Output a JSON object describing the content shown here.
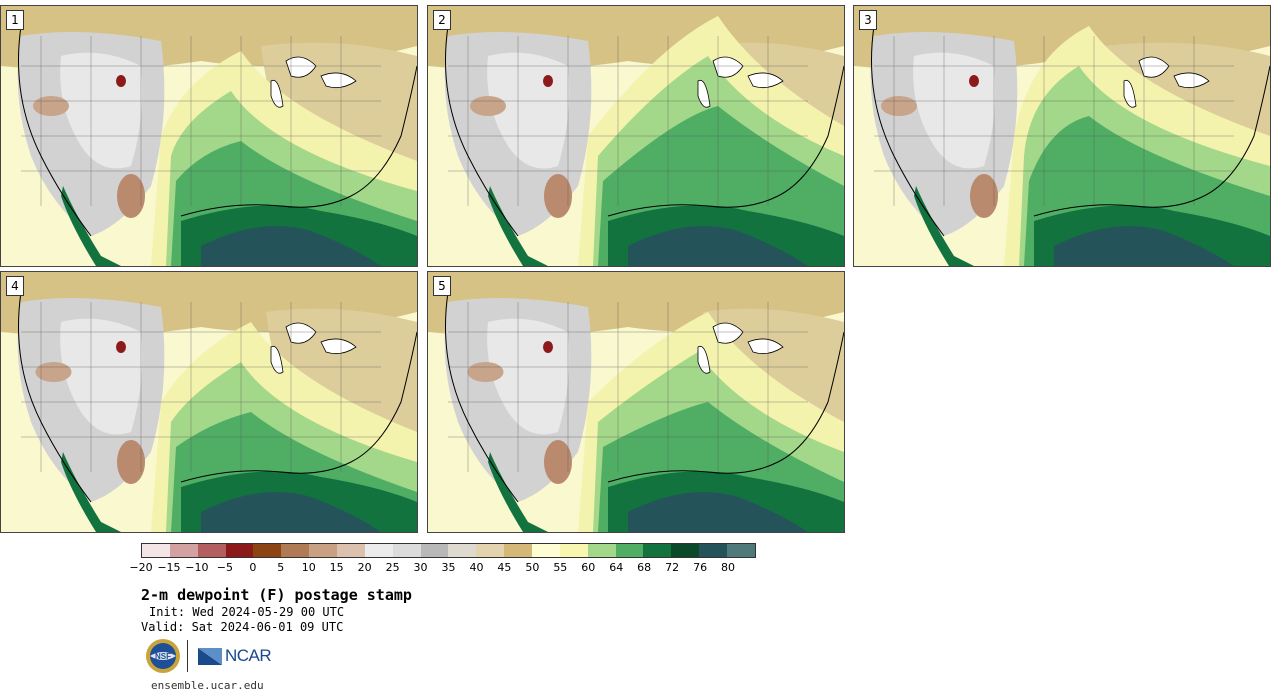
{
  "panels": [
    {
      "label": "1"
    },
    {
      "label": "2"
    },
    {
      "label": "3"
    },
    {
      "label": "4"
    },
    {
      "label": "5"
    }
  ],
  "colorbar": {
    "colors": [
      "#f4e6e6",
      "#d4a1a1",
      "#b45f5f",
      "#8c1a1a",
      "#8c4512",
      "#b07a55",
      "#c9a084",
      "#dcc2ae",
      "#ececec",
      "#dcdcdc",
      "#b8b8b8",
      "#dedad0",
      "#e3d4ad",
      "#d3b878",
      "#fefed2",
      "#f7f7b0",
      "#a3d88a",
      "#4fae64",
      "#12733f",
      "#0a4a2a",
      "#24545a",
      "#4f7a7c"
    ],
    "ticks": [
      "−20",
      "−15",
      "−10",
      "−5",
      "0",
      "5",
      "10",
      "15",
      "20",
      "25",
      "30",
      "35",
      "40",
      "45",
      "50",
      "55",
      "60",
      "64",
      "68",
      "72",
      "76",
      "80"
    ]
  },
  "title": "2-m dewpoint (F) postage stamp",
  "init": "Init: Wed 2024-05-29 00 UTC",
  "valid": "Valid: Sat 2024-06-01 09 UTC",
  "logos": {
    "nsf_text": "NSF",
    "ncar_text": "NCAR"
  },
  "url": "ensemble.ucar.edu"
}
